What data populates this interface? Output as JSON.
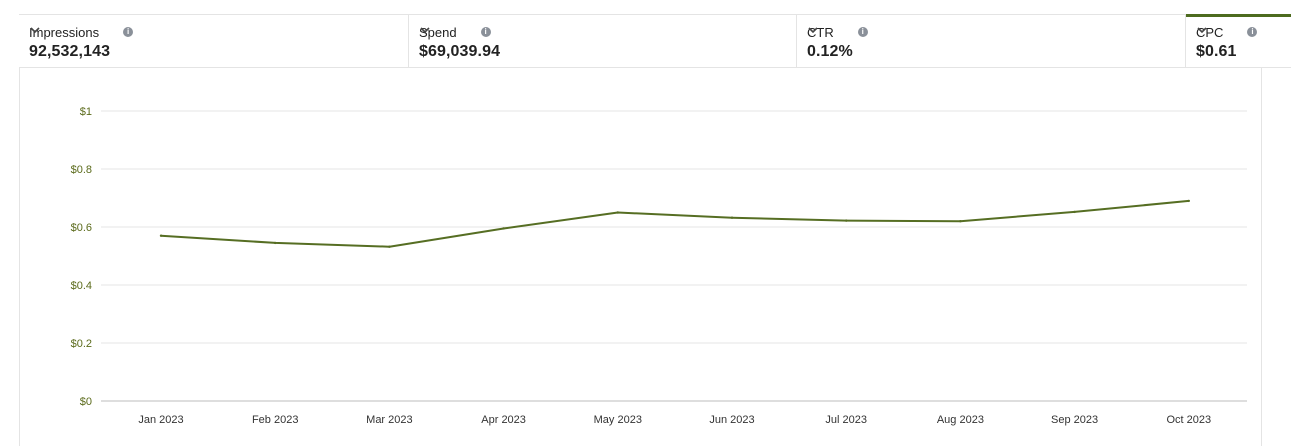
{
  "metrics": [
    {
      "label": "Impressions",
      "value": "92,532,143",
      "selected": false
    },
    {
      "label": "Spend",
      "value": "$69,039.94",
      "selected": false
    },
    {
      "label": "CTR",
      "value": "0.12%",
      "selected": false
    },
    {
      "label": "CPC",
      "value": "$0.61",
      "selected": true
    }
  ],
  "info_glyph": "i",
  "colors": {
    "line": "#566e23",
    "accent": "#4d6b1f",
    "grid": "#e6e6e6"
  },
  "chart_data": {
    "type": "line",
    "categories": [
      "Jan 2023",
      "Feb 2023",
      "Mar 2023",
      "Apr 2023",
      "May 2023",
      "Jun 2023",
      "Jul 2023",
      "Aug 2023",
      "Sep 2023",
      "Oct 2023"
    ],
    "series": [
      {
        "values": [
          0.57,
          0.545,
          0.532,
          0.595,
          0.65,
          0.632,
          0.622,
          0.62,
          0.652,
          0.69
        ]
      }
    ],
    "y_ticks": [
      "$0",
      "$0.2",
      "$0.4",
      "$0.6",
      "$0.8",
      "$1"
    ],
    "ylim": [
      0,
      1
    ],
    "grid": true
  }
}
